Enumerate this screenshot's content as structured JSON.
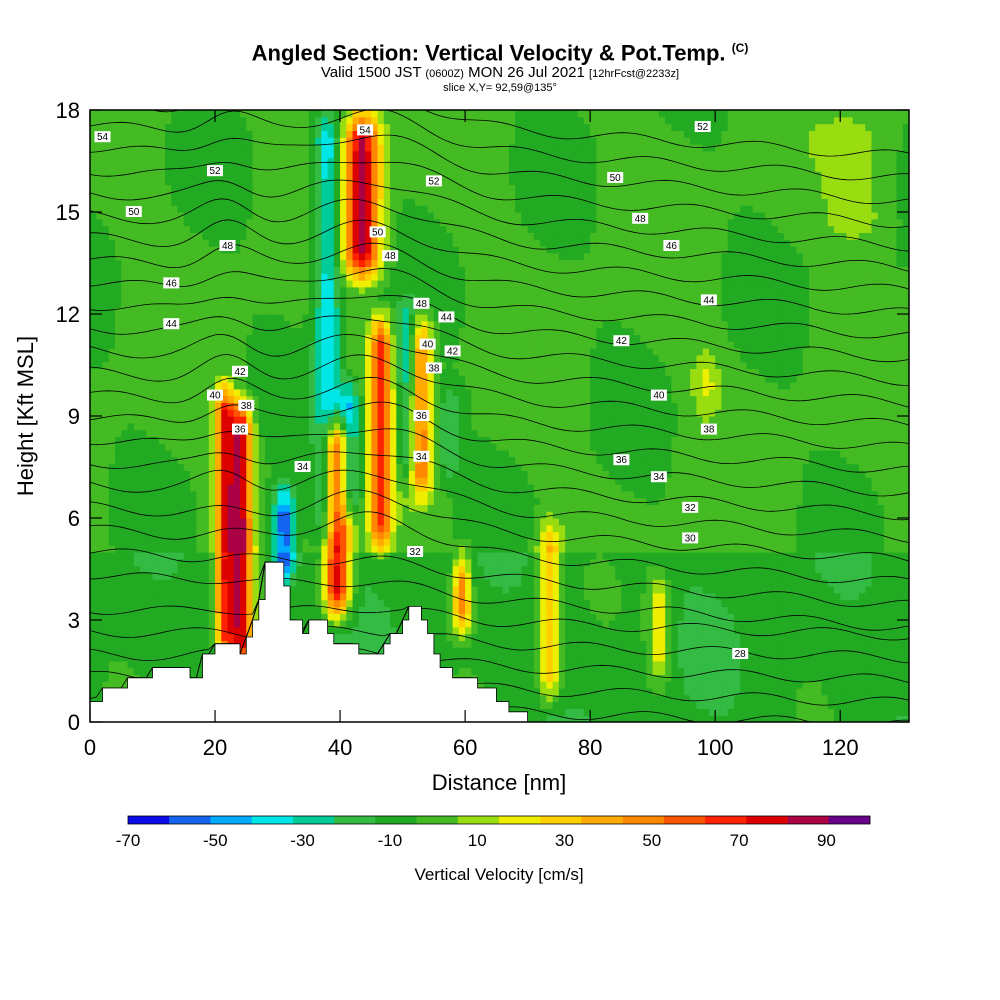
{
  "title": {
    "main": "Angled Section: Vertical Velocity & Pot.Temp.",
    "copyright": "(C)",
    "valid_prefix": "Valid 1500 JST",
    "valid_zulu": "(0600Z)",
    "valid_date": "MON 26 Jul 2021",
    "forecast": "[12hrFcst@2233z]",
    "slice": "slice X,Y= 92,59@135°"
  },
  "chart_data": {
    "type": "heatmap",
    "xlabel": "Distance [nm]",
    "ylabel": "Height [Kft MSL]",
    "xlim": [
      0,
      131
    ],
    "ylim": [
      0,
      18
    ],
    "xticks": [
      0,
      20,
      40,
      60,
      80,
      100,
      120
    ],
    "yticks": [
      0,
      3,
      6,
      9,
      12,
      15,
      18
    ],
    "colorbar": {
      "label": "Vertical Velocity [cm/s]",
      "ticks": [
        -70,
        -50,
        -30,
        -10,
        10,
        30,
        50,
        70,
        90
      ],
      "levels": [
        -70,
        -60,
        -50,
        -40,
        -30,
        -20,
        -10,
        0,
        10,
        20,
        30,
        40,
        50,
        60,
        70,
        80,
        90,
        100
      ],
      "colors": [
        "#0a0ae6",
        "#1464f0",
        "#00aaff",
        "#00e6e6",
        "#00cc99",
        "#33bb44",
        "#22aa22",
        "#44bb22",
        "#99dd11",
        "#eeee00",
        "#ffd000",
        "#ffaa00",
        "#ff8800",
        "#ff5500",
        "#ff2200",
        "#dd0000",
        "#aa0044",
        "#660088"
      ]
    },
    "updraft_columns": [
      {
        "x": 21.5,
        "width": 2.0,
        "top": 10.0,
        "bottom": 1.8,
        "peak": 70
      },
      {
        "x": 24.0,
        "width": 2.5,
        "top": 9.5,
        "bottom": 1.5,
        "peak": 90
      },
      {
        "x": 39.5,
        "width": 3.0,
        "top": 9.0,
        "bottom": 3.0,
        "peak": 90
      },
      {
        "x": 43.5,
        "width": 4.0,
        "top": 18.0,
        "bottom": 13.0,
        "peak": 90
      },
      {
        "x": 46.5,
        "width": 2.5,
        "top": 12.0,
        "bottom": 5.0,
        "peak": 70
      },
      {
        "x": 53.0,
        "width": 2.5,
        "top": 12.0,
        "bottom": 6.5,
        "peak": 50
      },
      {
        "x": 59.5,
        "width": 2.0,
        "top": 5.0,
        "bottom": 2.5,
        "peak": 60
      },
      {
        "x": 73.5,
        "width": 2.5,
        "top": 6.0,
        "bottom": 0.5,
        "peak": 40
      },
      {
        "x": 91.0,
        "width": 2.5,
        "top": 4.5,
        "bottom": 1.0,
        "peak": 30
      },
      {
        "x": 98.5,
        "width": 3.0,
        "top": 11.0,
        "bottom": 9.0,
        "peak": 20
      },
      {
        "x": 123.0,
        "width": 8.0,
        "top": 18.0,
        "bottom": 14.0,
        "peak": 15
      }
    ],
    "downdraft_columns": [
      {
        "x": 38.0,
        "width": 3.0,
        "top": 18.0,
        "bottom": 5.0,
        "peak": -40
      },
      {
        "x": 41.5,
        "width": 2.5,
        "top": 10.0,
        "bottom": 6.0,
        "peak": -50
      },
      {
        "x": 31.0,
        "width": 2.5,
        "top": 7.0,
        "bottom": 4.0,
        "peak": -60
      },
      {
        "x": 50.5,
        "width": 2.0,
        "top": 12.5,
        "bottom": 7.0,
        "peak": -30
      },
      {
        "x": 57.5,
        "width": 3.0,
        "top": 10.0,
        "bottom": 7.0,
        "peak": -20
      }
    ],
    "terrain": [
      [
        0,
        0.6
      ],
      [
        2,
        0.6
      ],
      [
        2,
        1.0
      ],
      [
        6,
        1.0
      ],
      [
        6,
        1.3
      ],
      [
        10,
        1.3
      ],
      [
        10,
        1.6
      ],
      [
        16,
        1.6
      ],
      [
        16,
        1.3
      ],
      [
        18,
        1.3
      ],
      [
        18,
        2.0
      ],
      [
        20,
        2.0
      ],
      [
        20,
        2.3
      ],
      [
        24,
        2.3
      ],
      [
        24,
        2.0
      ],
      [
        25,
        2.0
      ],
      [
        25,
        2.5
      ],
      [
        26,
        2.5
      ],
      [
        26,
        3.0
      ],
      [
        27,
        3.0
      ],
      [
        27,
        3.6
      ],
      [
        28,
        3.6
      ],
      [
        28,
        4.7
      ],
      [
        31,
        4.7
      ],
      [
        31,
        4.0
      ],
      [
        32,
        4.0
      ],
      [
        32,
        3.0
      ],
      [
        34,
        3.0
      ],
      [
        34,
        2.6
      ],
      [
        35,
        2.6
      ],
      [
        35,
        3.0
      ],
      [
        38,
        3.0
      ],
      [
        38,
        2.6
      ],
      [
        39,
        2.6
      ],
      [
        39,
        2.3
      ],
      [
        43,
        2.3
      ],
      [
        43,
        2.0
      ],
      [
        47,
        2.0
      ],
      [
        47,
        2.3
      ],
      [
        48,
        2.3
      ],
      [
        48,
        2.6
      ],
      [
        50,
        2.6
      ],
      [
        50,
        3.0
      ],
      [
        51,
        3.0
      ],
      [
        51,
        3.4
      ],
      [
        53,
        3.4
      ],
      [
        53,
        3.0
      ],
      [
        54,
        3.0
      ],
      [
        54,
        2.6
      ],
      [
        55,
        2.6
      ],
      [
        55,
        2.0
      ],
      [
        56,
        2.0
      ],
      [
        56,
        1.6
      ],
      [
        58,
        1.6
      ],
      [
        58,
        1.3
      ],
      [
        62,
        1.3
      ],
      [
        62,
        1.0
      ],
      [
        65,
        1.0
      ],
      [
        65,
        0.6
      ],
      [
        67,
        0.6
      ],
      [
        67,
        0.3
      ],
      [
        70,
        0.3
      ],
      [
        70,
        0.0
      ]
    ],
    "theta_contours": [
      28,
      29,
      30,
      31,
      32,
      33,
      34,
      35,
      36,
      37,
      38,
      39,
      40,
      41,
      42,
      43,
      44,
      45,
      46,
      47,
      48,
      49,
      50,
      51,
      52,
      53,
      54
    ],
    "contour_labels": [
      {
        "text": "54",
        "x": 2,
        "y": 17.2
      },
      {
        "text": "52",
        "x": 20,
        "y": 16.2
      },
      {
        "text": "50",
        "x": 7,
        "y": 15.0
      },
      {
        "text": "48",
        "x": 22,
        "y": 14.0
      },
      {
        "text": "46",
        "x": 13,
        "y": 12.9
      },
      {
        "text": "44",
        "x": 13,
        "y": 11.7
      },
      {
        "text": "42",
        "x": 24,
        "y": 10.3
      },
      {
        "text": "40",
        "x": 20,
        "y": 9.6
      },
      {
        "text": "38",
        "x": 25,
        "y": 9.3
      },
      {
        "text": "36",
        "x": 24,
        "y": 8.6
      },
      {
        "text": "34",
        "x": 34,
        "y": 7.5
      },
      {
        "text": "54",
        "x": 44,
        "y": 17.4
      },
      {
        "text": "52",
        "x": 55,
        "y": 15.9
      },
      {
        "text": "50",
        "x": 46,
        "y": 14.4
      },
      {
        "text": "48",
        "x": 48,
        "y": 13.7
      },
      {
        "text": "48",
        "x": 53,
        "y": 12.3
      },
      {
        "text": "44",
        "x": 57,
        "y": 11.9
      },
      {
        "text": "40",
        "x": 54,
        "y": 11.1
      },
      {
        "text": "42",
        "x": 58,
        "y": 10.9
      },
      {
        "text": "38",
        "x": 55,
        "y": 10.4
      },
      {
        "text": "36",
        "x": 53,
        "y": 9.0
      },
      {
        "text": "34",
        "x": 53,
        "y": 7.8
      },
      {
        "text": "32",
        "x": 52,
        "y": 5.0
      },
      {
        "text": "52",
        "x": 98,
        "y": 17.5
      },
      {
        "text": "50",
        "x": 84,
        "y": 16.0
      },
      {
        "text": "48",
        "x": 88,
        "y": 14.8
      },
      {
        "text": "46",
        "x": 93,
        "y": 14.0
      },
      {
        "text": "44",
        "x": 99,
        "y": 12.4
      },
      {
        "text": "42",
        "x": 85,
        "y": 11.2
      },
      {
        "text": "40",
        "x": 91,
        "y": 9.6
      },
      {
        "text": "38",
        "x": 99,
        "y": 8.6
      },
      {
        "text": "36",
        "x": 85,
        "y": 7.7
      },
      {
        "text": "34",
        "x": 91,
        "y": 7.2
      },
      {
        "text": "32",
        "x": 96,
        "y": 6.3
      },
      {
        "text": "30",
        "x": 96,
        "y": 5.4
      },
      {
        "text": "28",
        "x": 104,
        "y": 2.0
      }
    ]
  }
}
